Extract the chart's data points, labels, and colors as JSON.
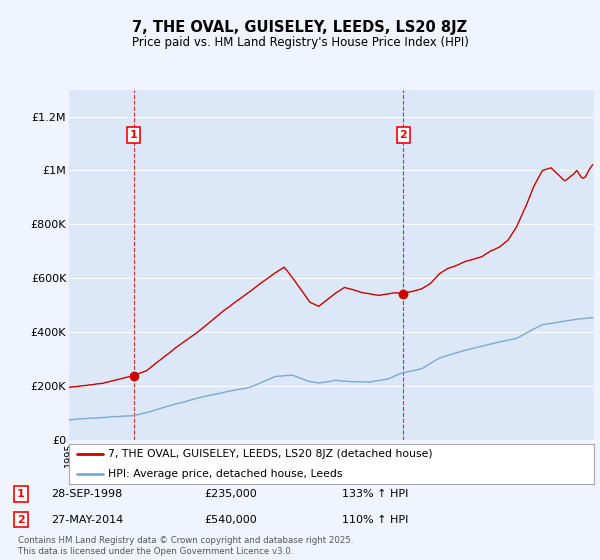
{
  "title": "7, THE OVAL, GUISELEY, LEEDS, LS20 8JZ",
  "subtitle": "Price paid vs. HM Land Registry's House Price Index (HPI)",
  "ylim": [
    0,
    1300000
  ],
  "yticks": [
    0,
    200000,
    400000,
    600000,
    800000,
    1000000,
    1200000
  ],
  "ytick_labels": [
    "£0",
    "£200K",
    "£400K",
    "£600K",
    "£800K",
    "£1M",
    "£1.2M"
  ],
  "background_color": "#f0f4ff",
  "plot_bg_color": "#dce8f8",
  "grid_color": "#ffffff",
  "red_line_color": "#cc0000",
  "blue_line_color": "#7aaad0",
  "sale1_year": 1998.75,
  "sale1_price": 235000,
  "sale2_year": 2014.417,
  "sale2_price": 540000,
  "legend_line1": "7, THE OVAL, GUISELEY, LEEDS, LS20 8JZ (detached house)",
  "legend_line2": "HPI: Average price, detached house, Leeds",
  "footnote": "Contains HM Land Registry data © Crown copyright and database right 2025.\nThis data is licensed under the Open Government Licence v3.0.",
  "xstart": 1995.0,
  "xend": 2025.5
}
